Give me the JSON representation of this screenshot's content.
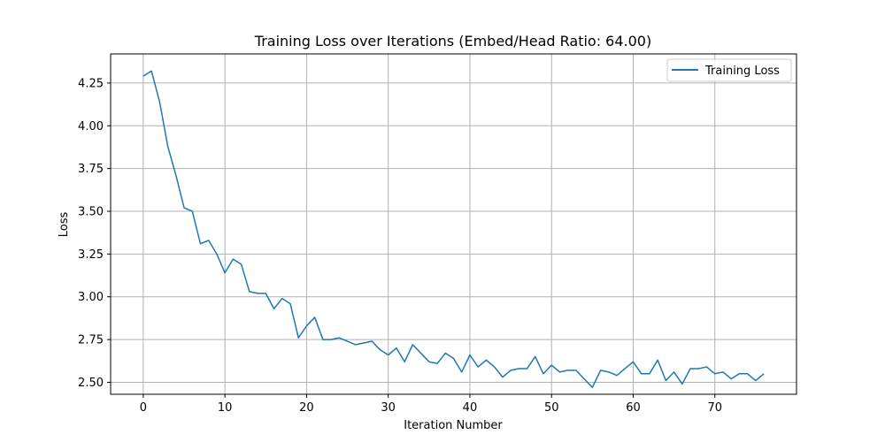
{
  "chart_data": {
    "type": "line",
    "title": "Training Loss over Iterations (Embed/Head Ratio: 64.00)",
    "xlabel": "Iteration Number",
    "ylabel": "Loss",
    "xlim": [
      -4,
      80
    ],
    "ylim": [
      2.43,
      4.42
    ],
    "xticks": [
      0,
      10,
      20,
      30,
      40,
      50,
      60,
      70
    ],
    "xtick_labels": [
      "0",
      "10",
      "20",
      "30",
      "40",
      "50",
      "60",
      "70"
    ],
    "yticks": [
      2.5,
      2.75,
      3.0,
      3.25,
      3.5,
      3.75,
      4.0,
      4.25
    ],
    "ytick_labels": [
      "2.50",
      "2.75",
      "3.00",
      "3.25",
      "3.50",
      "3.75",
      "4.00",
      "4.25"
    ],
    "grid": true,
    "legend_position": "top-right",
    "series": [
      {
        "name": "Training Loss",
        "color": "#1f77b4",
        "x": [
          0,
          1,
          2,
          3,
          4,
          5,
          6,
          7,
          8,
          9,
          10,
          11,
          12,
          13,
          14,
          15,
          16,
          17,
          18,
          19,
          20,
          21,
          22,
          23,
          24,
          25,
          26,
          27,
          28,
          29,
          30,
          31,
          32,
          33,
          34,
          35,
          36,
          37,
          38,
          39,
          40,
          41,
          42,
          43,
          44,
          45,
          46,
          47,
          48,
          49,
          50,
          51,
          52,
          53,
          54,
          55,
          56,
          57,
          58,
          59,
          60,
          61,
          62,
          63,
          64,
          65,
          66,
          67,
          68,
          69,
          70,
          71,
          72,
          73,
          74,
          75,
          76
        ],
        "values": [
          4.29,
          4.32,
          4.14,
          3.88,
          3.71,
          3.52,
          3.5,
          3.31,
          3.33,
          3.25,
          3.14,
          3.22,
          3.19,
          3.03,
          3.02,
          3.02,
          2.93,
          2.99,
          2.96,
          2.76,
          2.83,
          2.88,
          2.75,
          2.75,
          2.76,
          2.74,
          2.72,
          2.73,
          2.74,
          2.69,
          2.66,
          2.7,
          2.62,
          2.72,
          2.67,
          2.62,
          2.61,
          2.67,
          2.64,
          2.56,
          2.66,
          2.59,
          2.63,
          2.59,
          2.53,
          2.57,
          2.58,
          2.58,
          2.65,
          2.55,
          2.6,
          2.56,
          2.57,
          2.57,
          2.52,
          2.47,
          2.57,
          2.56,
          2.54,
          2.58,
          2.62,
          2.55,
          2.55,
          2.63,
          2.51,
          2.56,
          2.49,
          2.58,
          2.58,
          2.59,
          2.55,
          2.56,
          2.52,
          2.55,
          2.55,
          2.51,
          2.55
        ]
      }
    ]
  }
}
